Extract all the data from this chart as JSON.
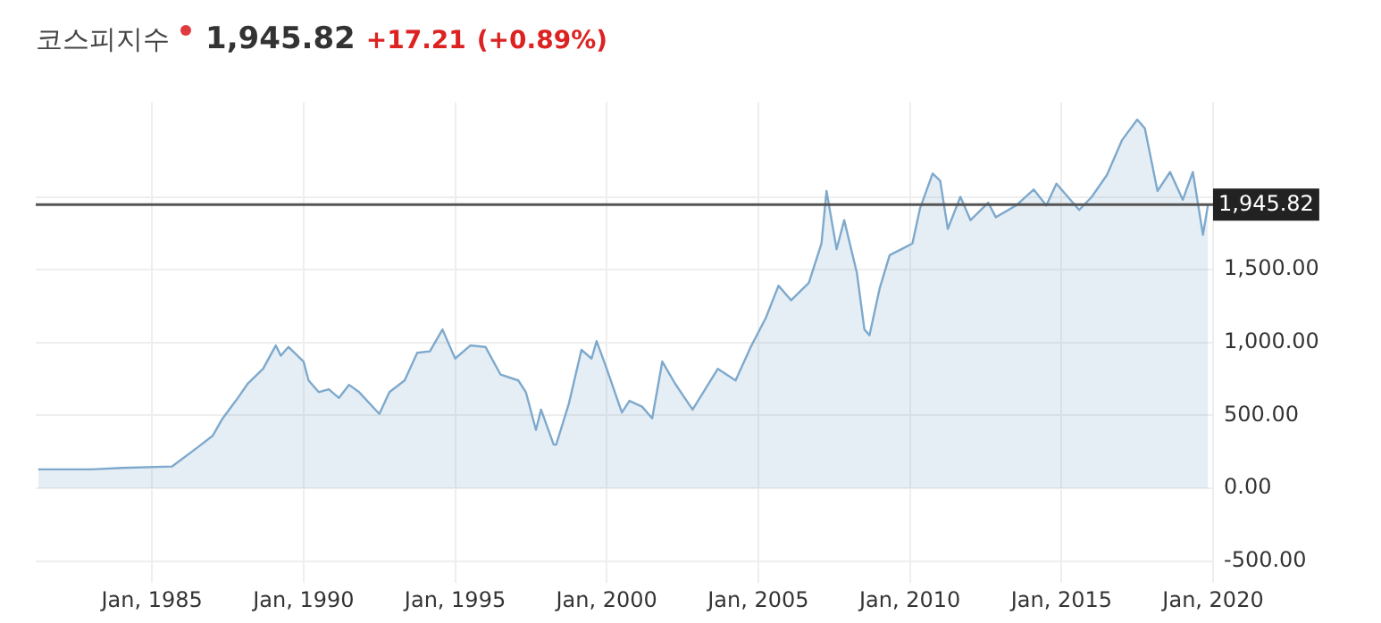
{
  "chart_data": {
    "type": "area",
    "title": "코스피지수",
    "annotations": [
      "1,945.82",
      "+17.21",
      "(+0.89%)"
    ],
    "x": [
      "1981-04",
      "1981-10",
      "1983-01",
      "1984-01",
      "1985-09",
      "1986-07",
      "1987-01",
      "1987-05",
      "1987-11",
      "1988-03",
      "1988-09",
      "1989-02",
      "1989-04",
      "1989-07",
      "1990-01",
      "1990-03",
      "1990-07",
      "1990-11",
      "1991-03",
      "1991-07",
      "1991-11",
      "1992-07",
      "1992-11",
      "1993-05",
      "1993-10",
      "1994-03",
      "1994-08",
      "1995-01",
      "1995-07",
      "1996-01",
      "1996-07",
      "1997-02",
      "1997-05",
      "1997-09",
      "1997-11",
      "1998-04",
      "1998-05",
      "1998-10",
      "1999-03",
      "1999-07",
      "1999-09",
      "2000-01",
      "2000-07",
      "2000-10",
      "2001-03",
      "2001-07",
      "2001-11",
      "2002-04",
      "2002-11",
      "2003-09",
      "2004-04",
      "2004-10",
      "2005-04",
      "2005-09",
      "2006-02",
      "2006-09",
      "2007-02",
      "2007-04",
      "2007-08",
      "2007-11",
      "2008-04",
      "2008-07",
      "2008-09",
      "2009-01",
      "2009-05",
      "2010-02",
      "2010-05",
      "2010-10",
      "2011-01",
      "2011-04",
      "2011-09",
      "2012-01",
      "2012-08",
      "2012-11",
      "2013-07",
      "2014-02",
      "2014-07",
      "2014-11",
      "2015-08",
      "2016-01",
      "2016-07",
      "2017-01",
      "2017-07",
      "2017-10",
      "2018-03",
      "2018-08",
      "2019-01",
      "2019-05",
      "2019-09",
      "2019-11"
    ],
    "series": [
      {
        "color": "#7ea9cc",
        "values": [
          130,
          130,
          130,
          140,
          150,
          280,
          360,
          480,
          620,
          720,
          820,
          980,
          910,
          970,
          870,
          740,
          660,
          680,
          620,
          710,
          660,
          510,
          660,
          740,
          930,
          940,
          1090,
          890,
          980,
          970,
          780,
          740,
          660,
          400,
          540,
          300,
          300,
          580,
          950,
          890,
          1010,
          820,
          520,
          600,
          560,
          480,
          870,
          720,
          540,
          820,
          740,
          970,
          1170,
          1390,
          1290,
          1410,
          1680,
          2040,
          1640,
          1840,
          1480,
          1090,
          1050,
          1370,
          1600,
          1680,
          1920,
          2160,
          2110,
          1780,
          2000,
          1840,
          1960,
          1860,
          1940,
          2050,
          1940,
          2090,
          1910,
          2000,
          2150,
          2390,
          2530,
          2470,
          2040,
          2170,
          1980,
          2170,
          1740,
          1945.82
        ]
      }
    ],
    "xlim": [
      "1981-03",
      "2020-01"
    ],
    "xticks": [
      {
        "value": "1985-01",
        "label": "Jan, 1985"
      },
      {
        "value": "1990-01",
        "label": "Jan, 1990"
      },
      {
        "value": "1995-01",
        "label": "Jan, 1995"
      },
      {
        "value": "2000-01",
        "label": "Jan, 2000"
      },
      {
        "value": "2005-01",
        "label": "Jan, 2005"
      },
      {
        "value": "2010-01",
        "label": "Jan, 2010"
      },
      {
        "value": "2015-01",
        "label": "Jan, 2015"
      },
      {
        "value": "2020-01",
        "label": "Jan, 2020"
      }
    ],
    "ylim": [
      -650,
      2650
    ],
    "yticks": [
      {
        "value": -500,
        "label": "-500.00"
      },
      {
        "value": 0,
        "label": "0.00"
      },
      {
        "value": 500,
        "label": "500.00"
      },
      {
        "value": 1000,
        "label": "1,000.00"
      },
      {
        "value": 1500,
        "label": "1,500.00"
      },
      {
        "value": 2000,
        "label": null
      }
    ],
    "ref_lines": [
      {
        "axis": "y",
        "value": 1945.82,
        "label": "1,945.82",
        "color": "#555555"
      }
    ],
    "grid": true,
    "legend": false,
    "marker": "none",
    "line_style": "solid"
  }
}
